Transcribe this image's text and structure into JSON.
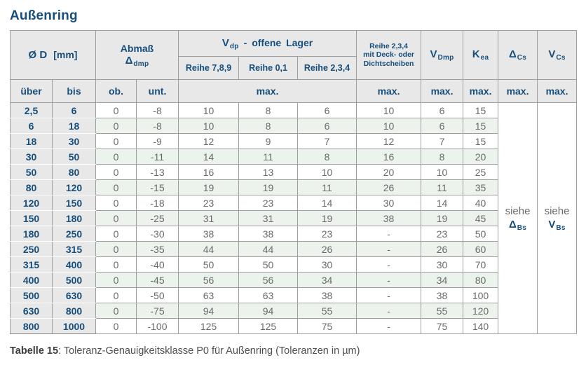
{
  "title": "Außenring",
  "colors": {
    "navy": "#164e7c",
    "data_gray": "#6a6a6a",
    "header_bg": "#e8e8e8",
    "row_green": "#ecf3ec",
    "grid": "#9e9e9e"
  },
  "header": {
    "d_label": "Ø D",
    "d_unit": "[mm]",
    "abmass_line1": "Abmaß",
    "abmass_sym": "Δ",
    "abmass_sub": "dmp",
    "vdp_sym": "V",
    "vdp_sub": "dp",
    "vdp_rest": "- offene Lager",
    "reihe789": "Reihe 7,8,9",
    "reihe01": "Reihe 0,1",
    "reihe234": "Reihe 2,3,4",
    "sealed_line1": "Reihe 2,3,4",
    "sealed_line2": "mit Deck- oder",
    "sealed_line3": "Dichtscheiben",
    "vdmp_sym": "V",
    "vdmp_sub": "Dmp",
    "kea_sym": "K",
    "kea_sub": "ea",
    "dcs_sym": "Δ",
    "dcs_sub": "Cs",
    "vcs_sym": "V",
    "vcs_sub": "Cs",
    "ueber": "über",
    "bis": "bis",
    "ob": "ob.",
    "unt": "unt.",
    "max": "max."
  },
  "see_cells": {
    "delta": {
      "siehe": "siehe",
      "sym": "Δ",
      "sub": "Bs"
    },
    "v": {
      "siehe": "siehe",
      "sym": "V",
      "sub": "Bs"
    }
  },
  "rows": [
    [
      "2,5",
      "6",
      "0",
      "-8",
      "10",
      "8",
      "6",
      "10",
      "6",
      "15"
    ],
    [
      "6",
      "18",
      "0",
      "-8",
      "10",
      "8",
      "6",
      "10",
      "6",
      "15"
    ],
    [
      "18",
      "30",
      "0",
      "-9",
      "12",
      "9",
      "7",
      "12",
      "7",
      "15"
    ],
    [
      "30",
      "50",
      "0",
      "-11",
      "14",
      "11",
      "8",
      "16",
      "8",
      "20"
    ],
    [
      "50",
      "80",
      "0",
      "-13",
      "16",
      "13",
      "10",
      "20",
      "10",
      "25"
    ],
    [
      "80",
      "120",
      "0",
      "-15",
      "19",
      "19",
      "11",
      "26",
      "11",
      "35"
    ],
    [
      "120",
      "150",
      "0",
      "-18",
      "23",
      "23",
      "14",
      "30",
      "14",
      "40"
    ],
    [
      "150",
      "180",
      "0",
      "-25",
      "31",
      "31",
      "19",
      "38",
      "19",
      "45"
    ],
    [
      "180",
      "250",
      "0",
      "-30",
      "38",
      "38",
      "23",
      "-",
      "23",
      "50"
    ],
    [
      "250",
      "315",
      "0",
      "-35",
      "44",
      "44",
      "26",
      "-",
      "26",
      "60"
    ],
    [
      "315",
      "400",
      "0",
      "-40",
      "50",
      "50",
      "30",
      "-",
      "30",
      "70"
    ],
    [
      "400",
      "500",
      "0",
      "-45",
      "56",
      "56",
      "34",
      "-",
      "34",
      "80"
    ],
    [
      "500",
      "630",
      "0",
      "-50",
      "63",
      "63",
      "38",
      "-",
      "38",
      "100"
    ],
    [
      "630",
      "800",
      "0",
      "-75",
      "94",
      "94",
      "55",
      "-",
      "55",
      "120"
    ],
    [
      "800",
      "1000",
      "0",
      "-100",
      "125",
      "125",
      "75",
      "-",
      "75",
      "140"
    ]
  ],
  "caption": {
    "label": "Tabelle 15",
    "text": ": Toleranz-Genauigkeitsklasse P0 für Außenring (Toleranzen in µm)"
  }
}
